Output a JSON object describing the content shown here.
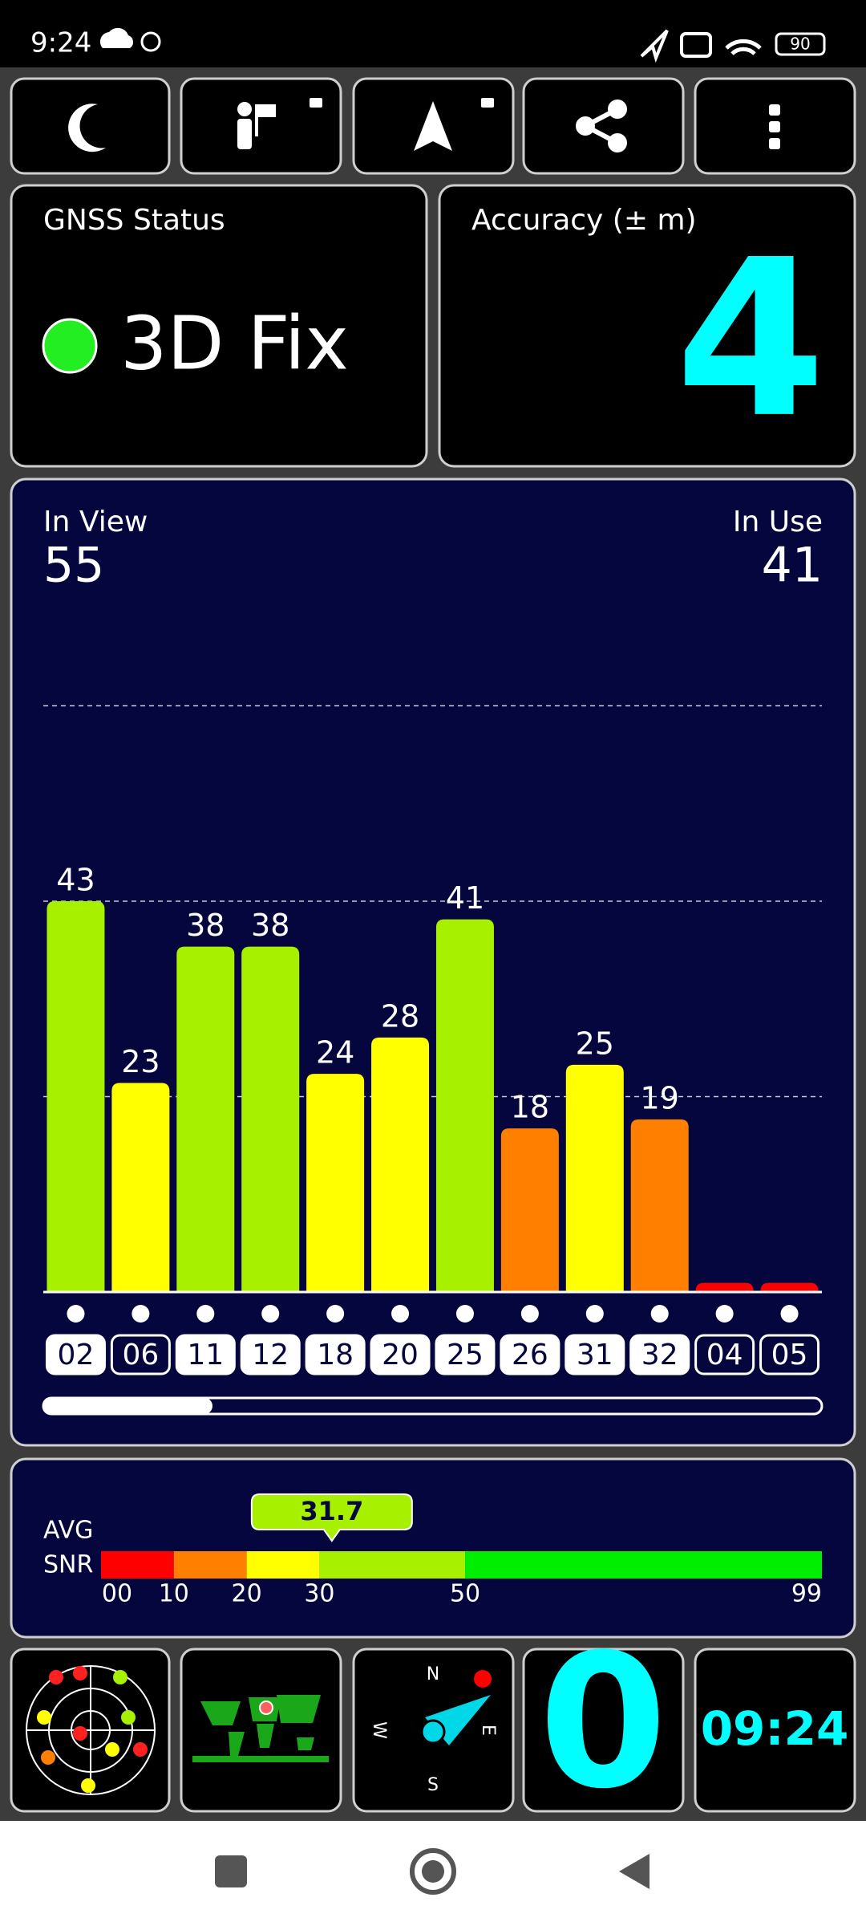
{
  "status_bar": {
    "time": "9:24",
    "battery": "90"
  },
  "gnss_status": {
    "title": "GNSS Status",
    "value": "3D Fix"
  },
  "accuracy": {
    "title": "Accuracy (± m)",
    "value": "4"
  },
  "chart_data": {
    "type": "bar",
    "in_view_label": "In View",
    "in_view": "55",
    "in_use_label": "In Use",
    "in_use": "41",
    "categories": [
      "02",
      "06",
      "11",
      "12",
      "18",
      "20",
      "25",
      "26",
      "31",
      "32",
      "04",
      "05"
    ],
    "values": [
      43,
      23,
      38,
      38,
      24,
      28,
      41,
      18,
      25,
      19,
      1,
      1
    ],
    "value_labels": [
      "43",
      "23",
      "38",
      "38",
      "24",
      "28",
      "41",
      "18",
      "25",
      "19",
      null,
      null
    ],
    "used": [
      true,
      false,
      true,
      true,
      true,
      true,
      true,
      true,
      true,
      true,
      false,
      false
    ],
    "colors": [
      "#a6f000",
      "#ffff00",
      "#a6f000",
      "#a6f000",
      "#ffff00",
      "#ffff00",
      "#a6f000",
      "#ff8000",
      "#ffff00",
      "#ff8000",
      "#ff0000",
      "#ff0000"
    ],
    "ylim": [
      0,
      86
    ],
    "yticks": [
      21.5,
      43,
      64.5
    ],
    "grid": true
  },
  "snr": {
    "label_1": "AVG",
    "label_2": "SNR",
    "value": 31.7,
    "value_label": "31.7",
    "xlim": [
      0,
      99
    ],
    "xticks": [
      {
        "value": 0,
        "label": "00"
      },
      10,
      20,
      30,
      50,
      99
    ],
    "band_colors": [
      "#ff0000",
      "#ff8000",
      "#ffff00",
      "#a6f000",
      "#00ee00"
    ]
  },
  "tiles": {
    "compass_n": "N",
    "compass_e": "E",
    "compass_s": "S",
    "compass_w": "W",
    "speed": "0",
    "clock": "09:24"
  }
}
